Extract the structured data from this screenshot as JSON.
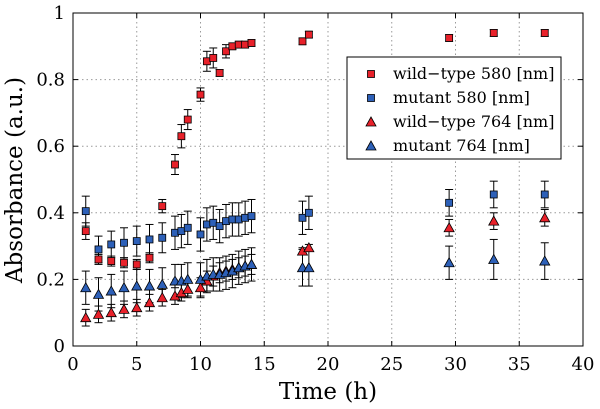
{
  "chart_data": {
    "type": "scatter",
    "title": "",
    "xlabel": "Time (h)",
    "ylabel": "Absorbance (a.u.)",
    "xlim": [
      0,
      40
    ],
    "ylim": [
      0,
      1
    ],
    "xticks": [
      0,
      5,
      10,
      15,
      20,
      25,
      30,
      35,
      40
    ],
    "yticks": [
      0,
      0.2,
      0.4,
      0.6,
      0.8,
      1
    ],
    "ytick_labels": [
      "0",
      "0.2",
      "0.4",
      "0.6",
      "0.8",
      "1"
    ],
    "grid": true,
    "legend_position": "top-right",
    "series": [
      {
        "name": "wild−type 580 [nm]",
        "marker": "square",
        "color": "#e8212a",
        "x": [
          1,
          2,
          3,
          4,
          5,
          6,
          7,
          8,
          8.5,
          9,
          10,
          10.5,
          11,
          11.5,
          12,
          12.5,
          13,
          13.5,
          14,
          18,
          18.5,
          29.5,
          33,
          37
        ],
        "y": [
          0.345,
          0.26,
          0.255,
          0.25,
          0.245,
          0.265,
          0.42,
          0.545,
          0.63,
          0.68,
          0.755,
          0.855,
          0.865,
          0.82,
          0.885,
          0.9,
          0.905,
          0.905,
          0.91,
          0.915,
          0.935,
          0.925,
          0.94,
          0.94
        ],
        "err": [
          0.025,
          0.015,
          0.015,
          0.015,
          0.015,
          0.015,
          0.02,
          0.03,
          0.035,
          0.03,
          0.02,
          0.03,
          0.03,
          0.01,
          0.02,
          0.01,
          0.01,
          0.01,
          0.01,
          0.01,
          0.01,
          0.01,
          0.01,
          0.01
        ]
      },
      {
        "name": "mutant 580 [nm]",
        "marker": "square",
        "color": "#2d60b8",
        "x": [
          1,
          2,
          3,
          4,
          5,
          6,
          7,
          8,
          8.5,
          9,
          10,
          10.5,
          11,
          11.5,
          12,
          12.5,
          13,
          13.5,
          14,
          18,
          18.5,
          29.5,
          33,
          37
        ],
        "y": [
          0.405,
          0.29,
          0.305,
          0.31,
          0.315,
          0.32,
          0.325,
          0.34,
          0.345,
          0.355,
          0.335,
          0.365,
          0.37,
          0.36,
          0.375,
          0.38,
          0.38,
          0.385,
          0.39,
          0.385,
          0.4,
          0.43,
          0.455,
          0.455
        ],
        "err": [
          0.045,
          0.04,
          0.04,
          0.045,
          0.045,
          0.045,
          0.045,
          0.05,
          0.05,
          0.05,
          0.05,
          0.05,
          0.05,
          0.05,
          0.05,
          0.05,
          0.05,
          0.05,
          0.05,
          0.05,
          0.05,
          0.04,
          0.04,
          0.04
        ]
      },
      {
        "name": "wild−type 764 [nm]",
        "marker": "triangle",
        "color": "#e8212a",
        "x": [
          1,
          2,
          3,
          4,
          5,
          6,
          7,
          8,
          8.5,
          9,
          10,
          10.5,
          11,
          11.5,
          12,
          12.5,
          13,
          13.5,
          14,
          18,
          18.5,
          29.5,
          33,
          37
        ],
        "y": [
          0.085,
          0.095,
          0.1,
          0.11,
          0.115,
          0.13,
          0.145,
          0.15,
          0.16,
          0.17,
          0.175,
          0.195,
          0.21,
          0.22,
          0.225,
          0.23,
          0.235,
          0.24,
          0.245,
          0.285,
          0.295,
          0.355,
          0.375,
          0.385
        ],
        "err": [
          0.025,
          0.025,
          0.025,
          0.025,
          0.025,
          0.025,
          0.025,
          0.025,
          0.025,
          0.025,
          0.03,
          0.03,
          0.03,
          0.03,
          0.03,
          0.03,
          0.03,
          0.03,
          0.03,
          0.01,
          0.01,
          0.025,
          0.025,
          0.025
        ]
      },
      {
        "name": "mutant 764 [nm]",
        "marker": "triangle",
        "color": "#2d60b8",
        "x": [
          1,
          2,
          3,
          4,
          5,
          6,
          7,
          8,
          8.5,
          9,
          10,
          10.5,
          11,
          11.5,
          12,
          12.5,
          13,
          13.5,
          14,
          18,
          18.5,
          29.5,
          33,
          37
        ],
        "y": [
          0.175,
          0.155,
          0.165,
          0.175,
          0.18,
          0.18,
          0.185,
          0.195,
          0.195,
          0.2,
          0.2,
          0.21,
          0.215,
          0.215,
          0.22,
          0.225,
          0.235,
          0.24,
          0.245,
          0.235,
          0.235,
          0.25,
          0.26,
          0.255
        ],
        "err": [
          0.05,
          0.05,
          0.05,
          0.05,
          0.05,
          0.05,
          0.05,
          0.05,
          0.05,
          0.05,
          0.05,
          0.05,
          0.05,
          0.05,
          0.05,
          0.05,
          0.05,
          0.05,
          0.05,
          0.055,
          0.055,
          0.05,
          0.06,
          0.055
        ]
      }
    ]
  }
}
